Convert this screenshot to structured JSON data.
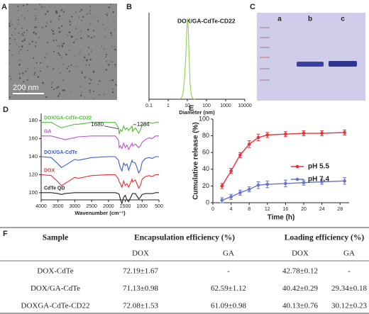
{
  "panel_labels": [
    "A",
    "B",
    "C",
    "D",
    "E",
    "F"
  ],
  "tem": {
    "scale_bar": "200 nm"
  },
  "gel": {
    "lanes": [
      "a",
      "b",
      "c"
    ]
  },
  "chart_data": [
    {
      "type": "line",
      "title": "DOX/GA-CdTe-CD22",
      "x_label": "Diameter (nm)",
      "x": [
        4,
        5,
        6,
        7,
        8,
        9,
        10,
        11,
        12,
        13,
        14,
        16,
        18,
        20,
        25
      ],
      "series": [
        {
          "color": "#8ed14f",
          "values": [
            0,
            0.5,
            2,
            6,
            12,
            20,
            26,
            24,
            17,
            10,
            5,
            1.5,
            0.5,
            0.2,
            0
          ]
        }
      ],
      "xscale": "log",
      "xlim": [
        0.1,
        10000
      ],
      "xticks": [
        0.1,
        1,
        10,
        100,
        1000,
        10000
      ],
      "ylim": [
        0,
        28
      ]
    },
    {
      "type": "line",
      "x_label": "Wavenumber (cm⁻¹)",
      "x": [
        4000,
        3700,
        3500,
        3400,
        3300,
        3000,
        2900,
        2500,
        2000,
        1800,
        1700,
        1680,
        1650,
        1600,
        1550,
        1500,
        1450,
        1400,
        1300,
        1284,
        1200,
        1100,
        1050,
        1000,
        900,
        800,
        700,
        600,
        500
      ],
      "series": [
        {
          "name": "CdTe QD",
          "color": "#222222",
          "values": [
            100,
            100,
            99,
            98,
            99,
            100,
            100,
            100,
            100,
            100,
            99,
            98,
            93,
            88,
            95,
            97,
            92,
            90,
            98,
            99,
            99,
            93,
            95,
            98,
            99,
            99,
            99,
            100,
            100
          ]
        },
        {
          "name": "DOX",
          "color": "#e8303a",
          "values": [
            120,
            119,
            112,
            108,
            110,
            117,
            116,
            119,
            120,
            120,
            115,
            112,
            110,
            106,
            113,
            108,
            110,
            106,
            115,
            112,
            114,
            105,
            108,
            115,
            118,
            119,
            118,
            120,
            120
          ]
        },
        {
          "name": "DOX/GA-CdTe",
          "color": "#3a5bd0",
          "values": [
            140,
            139,
            132,
            128,
            130,
            137,
            136,
            139,
            140,
            140,
            136,
            132,
            128,
            124,
            133,
            130,
            132,
            125,
            136,
            134,
            133,
            122,
            125,
            134,
            138,
            139,
            138,
            140,
            140
          ]
        },
        {
          "name": "GA",
          "color": "#c050d0",
          "values": [
            163,
            163,
            161,
            160,
            159,
            161,
            162,
            163,
            163,
            163,
            158,
            150,
            152,
            149,
            155,
            150,
            153,
            148,
            155,
            152,
            154,
            150,
            152,
            156,
            159,
            161,
            160,
            163,
            163
          ]
        },
        {
          "name": "DOX/GA-CdTe-CD22",
          "color": "#4fbf3a",
          "values": [
            178,
            178,
            174,
            172,
            173,
            176,
            176,
            178,
            178,
            178,
            172,
            165,
            170,
            168,
            174,
            170,
            172,
            169,
            174,
            168,
            172,
            166,
            170,
            175,
            177,
            178,
            177,
            178,
            178
          ]
        }
      ],
      "annotations": [
        1680,
        1284
      ],
      "xlim": [
        4000,
        500
      ],
      "xticks": [
        4000,
        3500,
        3000,
        2500,
        2000,
        1500,
        1000,
        500
      ],
      "ylim": [
        92,
        188
      ],
      "yticks": [
        100,
        120,
        140,
        160,
        180
      ]
    },
    {
      "type": "line",
      "x_label": "Time (h)",
      "y_label": "Cumulative release (%)",
      "x": [
        2,
        4,
        6,
        8,
        10,
        12,
        16,
        20,
        24,
        29
      ],
      "series": [
        {
          "name": "pH 5.5",
          "color": "#e8303a",
          "values": [
            20,
            38,
            57,
            70,
            78,
            81,
            82,
            83,
            83,
            84
          ],
          "errors": [
            3,
            3,
            3,
            4,
            4,
            3,
            3,
            3,
            3,
            3
          ]
        },
        {
          "name": "pH 7.4",
          "color": "#6a75c9",
          "values": [
            3,
            7,
            12,
            16,
            21,
            22,
            23,
            24,
            25,
            26
          ],
          "errors": [
            3,
            3,
            3,
            3,
            4,
            4,
            4,
            3,
            3,
            4
          ]
        }
      ],
      "xlim": [
        0,
        30
      ],
      "xticks": [
        0,
        4,
        8,
        12,
        16,
        20,
        24,
        28
      ],
      "ylim": [
        0,
        100
      ],
      "yticks": [
        0,
        20,
        40,
        60,
        80,
        100
      ],
      "legend": "center right"
    }
  ],
  "table": {
    "headers": [
      "Sample",
      "Encapsulation efficiency (%)",
      "Loading efficiency (%)"
    ],
    "subheaders": [
      "DOX",
      "GA",
      "DOX",
      "GA"
    ],
    "rows": [
      [
        "DOX-CdTe",
        "72.19±1.67",
        "-",
        "42.78±0.12",
        "-"
      ],
      [
        "DOX/GA-CdTe",
        "71.13±0.98",
        "62.59±1.12",
        "40.42±0.29",
        "29.34±0.18"
      ],
      [
        "DOXGA-CdTe-CD22",
        "72.08±1.53",
        "61.09±0.98",
        "40.13±0.76",
        "30.12±0.23"
      ]
    ]
  }
}
